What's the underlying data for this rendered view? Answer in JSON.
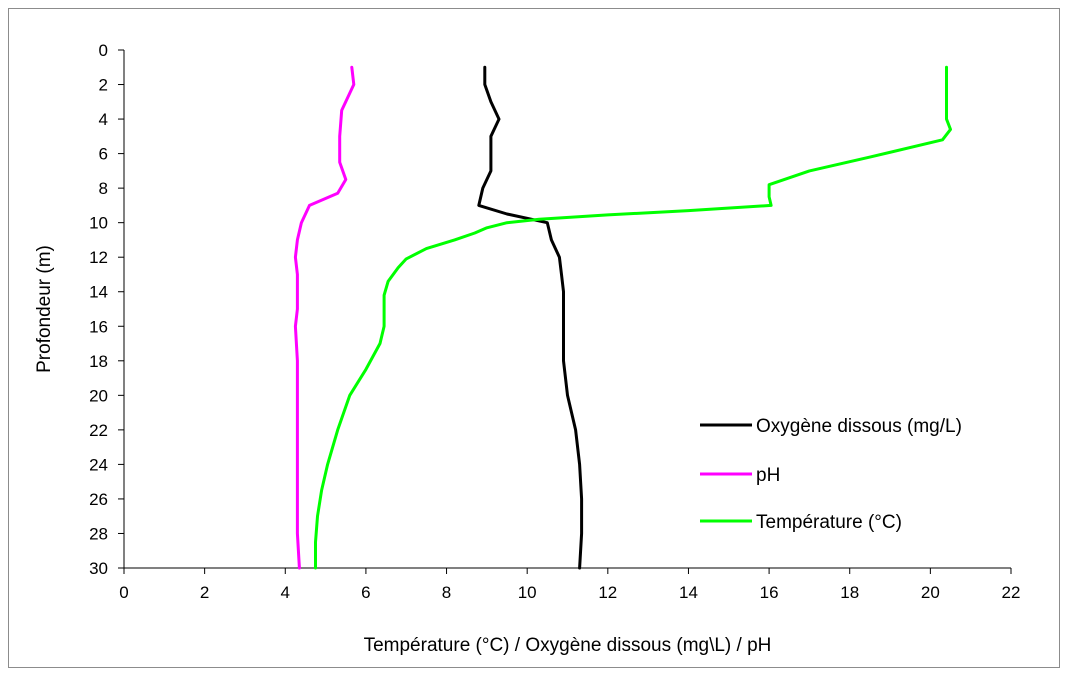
{
  "chart_data": {
    "type": "line",
    "title": "",
    "xlabel": "Température (°C) / Oxygène dissous (mg\\L) / pH",
    "ylabel": "Profondeur (m)",
    "xlim": [
      0,
      22
    ],
    "ylim": [
      0,
      30
    ],
    "y_inverted": true,
    "x_ticks": [
      "0",
      "2",
      "4",
      "6",
      "8",
      "10",
      "12",
      "14",
      "16",
      "18",
      "20",
      "22"
    ],
    "y_ticks": [
      "0",
      "2",
      "4",
      "6",
      "8",
      "10",
      "12",
      "14",
      "16",
      "18",
      "20",
      "22",
      "24",
      "26",
      "28",
      "30"
    ],
    "grid": false,
    "legend_position": "bottom-right",
    "series": [
      {
        "name": "Oxygène dissous (mg/L)",
        "color": "#000000",
        "points": [
          [
            8.95,
            1
          ],
          [
            8.95,
            2
          ],
          [
            9.1,
            3
          ],
          [
            9.3,
            4
          ],
          [
            9.1,
            5
          ],
          [
            9.1,
            6
          ],
          [
            9.1,
            7
          ],
          [
            8.9,
            8
          ],
          [
            8.8,
            9
          ],
          [
            9.5,
            9.5
          ],
          [
            10.5,
            10
          ],
          [
            10.6,
            11
          ],
          [
            10.8,
            12
          ],
          [
            10.85,
            13
          ],
          [
            10.9,
            14
          ],
          [
            10.9,
            16
          ],
          [
            10.9,
            18
          ],
          [
            11.0,
            20
          ],
          [
            11.2,
            22
          ],
          [
            11.3,
            24
          ],
          [
            11.35,
            26
          ],
          [
            11.35,
            28
          ],
          [
            11.3,
            30
          ]
        ]
      },
      {
        "name": "pH",
        "color": "#ff00ff",
        "points": [
          [
            5.65,
            1
          ],
          [
            5.7,
            2
          ],
          [
            5.4,
            3.5
          ],
          [
            5.35,
            5
          ],
          [
            5.35,
            6.5
          ],
          [
            5.5,
            7.5
          ],
          [
            5.3,
            8.3
          ],
          [
            4.6,
            9
          ],
          [
            4.4,
            10
          ],
          [
            4.3,
            11
          ],
          [
            4.25,
            12
          ],
          [
            4.3,
            13
          ],
          [
            4.3,
            15
          ],
          [
            4.25,
            16
          ],
          [
            4.3,
            18
          ],
          [
            4.3,
            20
          ],
          [
            4.3,
            22
          ],
          [
            4.3,
            24
          ],
          [
            4.3,
            26
          ],
          [
            4.3,
            28
          ],
          [
            4.35,
            30
          ]
        ]
      },
      {
        "name": "Température (°C)",
        "color": "#00ff00",
        "points": [
          [
            20.4,
            1
          ],
          [
            20.4,
            2
          ],
          [
            20.4,
            4
          ],
          [
            20.5,
            4.6
          ],
          [
            20.3,
            5.2
          ],
          [
            18.5,
            6.2
          ],
          [
            17.0,
            7.0
          ],
          [
            16.0,
            7.8
          ],
          [
            16.0,
            8.5
          ],
          [
            16.05,
            9.0
          ],
          [
            14.0,
            9.3
          ],
          [
            12.0,
            9.55
          ],
          [
            10.3,
            9.8
          ],
          [
            9.5,
            10
          ],
          [
            9.0,
            10.3
          ],
          [
            8.7,
            10.6
          ],
          [
            8.2,
            11.0
          ],
          [
            7.5,
            11.5
          ],
          [
            7.0,
            12.1
          ],
          [
            6.8,
            12.6
          ],
          [
            6.55,
            13.4
          ],
          [
            6.45,
            14.2
          ],
          [
            6.45,
            15
          ],
          [
            6.45,
            16
          ],
          [
            6.35,
            17
          ],
          [
            6.0,
            18.5
          ],
          [
            5.6,
            20
          ],
          [
            5.3,
            22
          ],
          [
            5.05,
            24
          ],
          [
            4.9,
            25.5
          ],
          [
            4.8,
            27
          ],
          [
            4.75,
            28.5
          ],
          [
            4.75,
            30
          ]
        ]
      }
    ]
  }
}
